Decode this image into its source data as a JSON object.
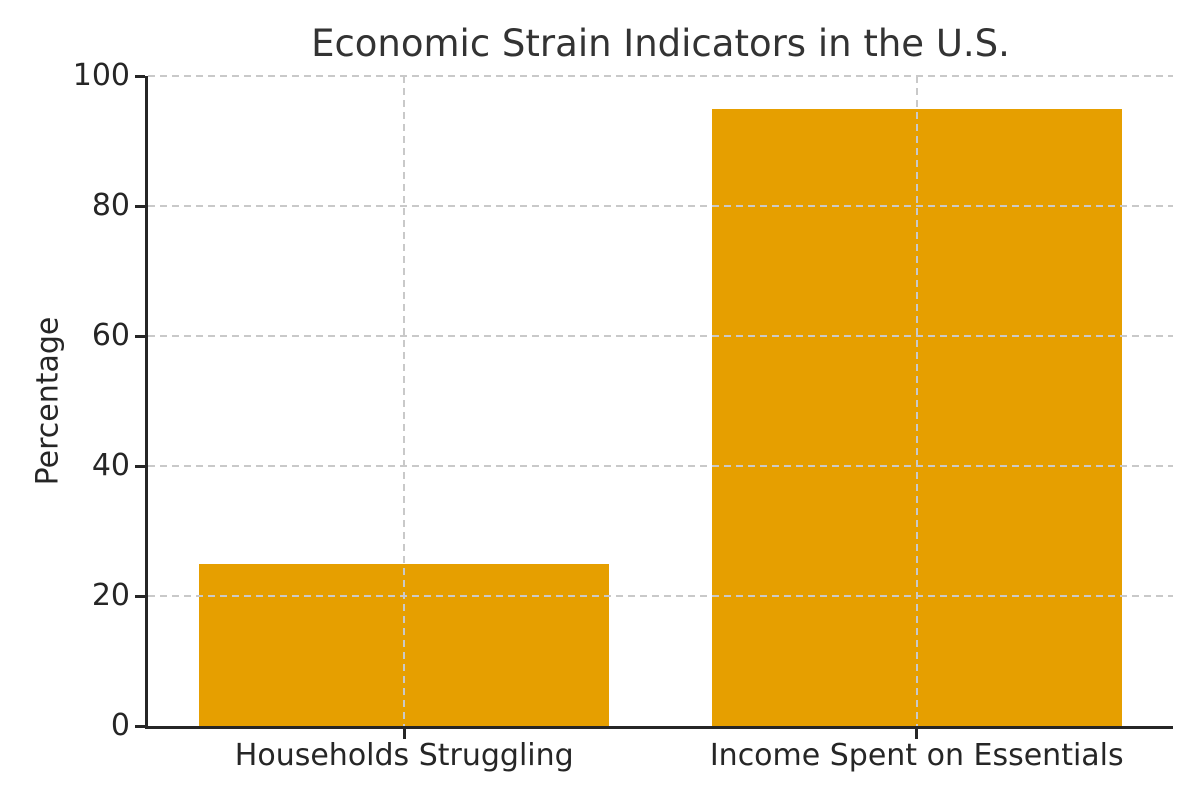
{
  "figure": {
    "background": "#ffffff"
  },
  "chart_data": {
    "type": "bar",
    "title": "Economic Strain Indicators in the U.S.",
    "categories": [
      "Households Struggling",
      "Income Spent on Essentials"
    ],
    "values": [
      25,
      95
    ],
    "xlabel": "",
    "ylabel": "Percentage",
    "ylim": [
      0,
      100
    ],
    "yticks": [
      0,
      20,
      40,
      60,
      80,
      100
    ],
    "bar_color": "#E69F00",
    "grid": true,
    "grid_style": "dashed",
    "grid_color": "#c9c9c9",
    "axis_color": "#262626",
    "tick_text_color": "#262626",
    "title_color": "#333333",
    "legend_position": "none"
  }
}
